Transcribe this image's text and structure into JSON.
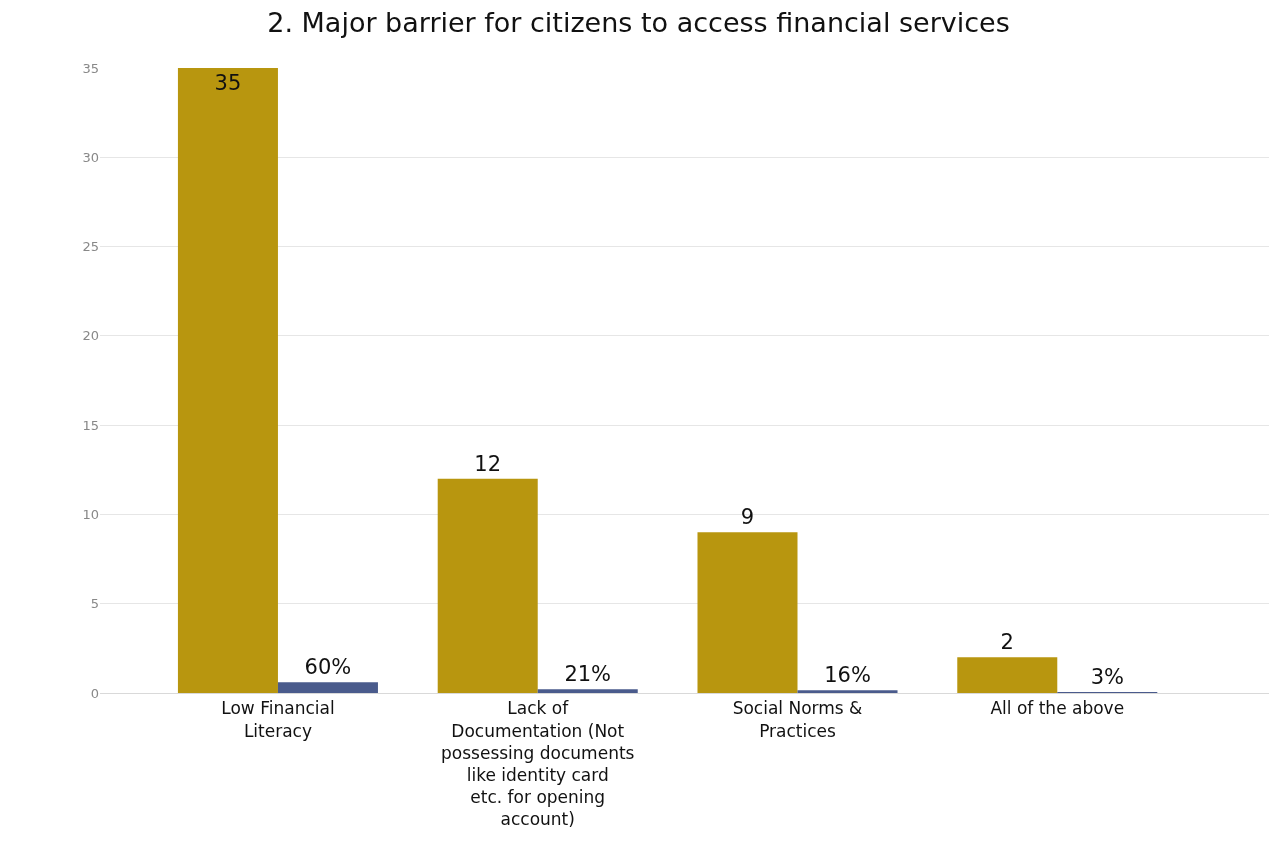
{
  "chart_data": {
    "type": "bar",
    "title": "2. Major barrier for citizens to access financial services",
    "categories": [
      "Low Financial Literacy",
      "Lack of Documentation (Not possessing documents like identity card etc. for opening account)",
      "Social Norms & Practices",
      "All of the above"
    ],
    "series": [
      {
        "color": "#b8960f",
        "values": [
          35,
          12,
          9,
          2
        ],
        "value_labels": [
          "35",
          "12",
          "9",
          "2"
        ]
      },
      {
        "color": "#4a5b8c",
        "values": [
          0.6,
          0.21,
          0.16,
          0.03
        ],
        "value_labels": [
          "60%",
          "21%",
          "16%",
          "3%"
        ]
      }
    ],
    "ylim": [
      0,
      35
    ],
    "yticks": [
      0,
      5,
      10,
      15,
      20,
      25,
      30,
      35
    ],
    "grid": "y"
  }
}
